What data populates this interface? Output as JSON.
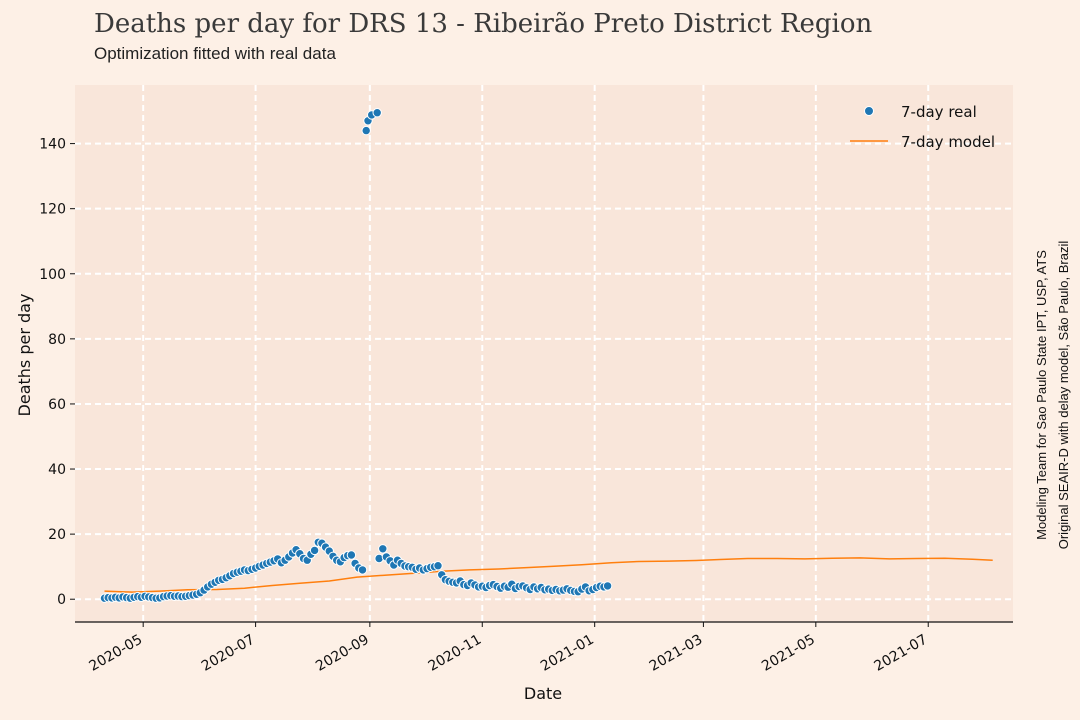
{
  "chart_data": {
    "type": "scatter",
    "title": "Deaths per day for DRS 13 - Ribeirão Preto District Region",
    "subtitle": "Optimization fitted with real data",
    "xlabel": "Date",
    "ylabel": "Deaths per day",
    "side_note": [
      "Modeling Team for Sao Paulo State IPT, USP, ATS",
      "Original SEAIR-D with delay model, São Paulo, Brazil"
    ],
    "x_type": "date",
    "xlim": [
      "2020-03-25",
      "2021-08-16"
    ],
    "ylim": [
      -7,
      158
    ],
    "x_ticks": [
      "2020-05-01",
      "2020-07-01",
      "2020-09-01",
      "2020-11-01",
      "2021-01-01",
      "2021-03-01",
      "2021-05-01",
      "2021-07-01"
    ],
    "x_tick_labels": [
      "2020-05",
      "2020-07",
      "2020-09",
      "2020-11",
      "2021-01",
      "2021-03",
      "2021-05",
      "2021-07"
    ],
    "y_ticks": [
      0,
      20,
      40,
      60,
      80,
      100,
      120,
      140
    ],
    "y_tick_labels": [
      "0",
      "20",
      "40",
      "60",
      "80",
      "100",
      "120",
      "140"
    ],
    "grid": true,
    "legend_position": "top-right",
    "background": "#fdf0e6",
    "plot_background": "#f9e6da",
    "grid_color": "#ffffff",
    "series": [
      {
        "name": "7-day real",
        "kind": "scatter",
        "color": "#1f77b4",
        "points": [
          [
            "2020-04-10",
            0.3
          ],
          [
            "2020-04-12",
            0.5
          ],
          [
            "2020-04-14",
            0.4
          ],
          [
            "2020-04-16",
            0.6
          ],
          [
            "2020-04-18",
            0.4
          ],
          [
            "2020-04-20",
            0.7
          ],
          [
            "2020-04-22",
            0.5
          ],
          [
            "2020-04-24",
            0.3
          ],
          [
            "2020-04-26",
            0.6
          ],
          [
            "2020-04-28",
            0.8
          ],
          [
            "2020-04-30",
            0.6
          ],
          [
            "2020-05-02",
            0.9
          ],
          [
            "2020-05-04",
            0.7
          ],
          [
            "2020-05-06",
            0.5
          ],
          [
            "2020-05-08",
            0.3
          ],
          [
            "2020-05-10",
            0.4
          ],
          [
            "2020-05-12",
            0.8
          ],
          [
            "2020-05-14",
            1.0
          ],
          [
            "2020-05-16",
            1.1
          ],
          [
            "2020-05-18",
            0.9
          ],
          [
            "2020-05-20",
            1.0
          ],
          [
            "2020-05-22",
            0.8
          ],
          [
            "2020-05-24",
            0.9
          ],
          [
            "2020-05-26",
            1.1
          ],
          [
            "2020-05-28",
            1.3
          ],
          [
            "2020-05-30",
            1.5
          ],
          [
            "2020-06-01",
            2.0
          ],
          [
            "2020-06-03",
            2.8
          ],
          [
            "2020-06-05",
            3.8
          ],
          [
            "2020-06-07",
            4.6
          ],
          [
            "2020-06-09",
            5.2
          ],
          [
            "2020-06-11",
            5.8
          ],
          [
            "2020-06-13",
            6.1
          ],
          [
            "2020-06-15",
            6.6
          ],
          [
            "2020-06-17",
            7.2
          ],
          [
            "2020-06-19",
            7.9
          ],
          [
            "2020-06-21",
            8.3
          ],
          [
            "2020-06-23",
            8.6
          ],
          [
            "2020-06-25",
            9.0
          ],
          [
            "2020-06-27",
            8.8
          ],
          [
            "2020-06-29",
            9.2
          ],
          [
            "2020-07-01",
            9.6
          ],
          [
            "2020-07-03",
            10.1
          ],
          [
            "2020-07-05",
            10.5
          ],
          [
            "2020-07-07",
            11.0
          ],
          [
            "2020-07-09",
            11.4
          ],
          [
            "2020-07-11",
            11.8
          ],
          [
            "2020-07-13",
            12.4
          ],
          [
            "2020-07-15",
            11.2
          ],
          [
            "2020-07-17",
            12.0
          ],
          [
            "2020-07-19",
            13.0
          ],
          [
            "2020-07-21",
            14.2
          ],
          [
            "2020-07-23",
            15.2
          ],
          [
            "2020-07-25",
            14.0
          ],
          [
            "2020-07-27",
            12.5
          ],
          [
            "2020-07-29",
            12.0
          ],
          [
            "2020-07-31",
            13.8
          ],
          [
            "2020-08-02",
            15.0
          ],
          [
            "2020-08-04",
            17.5
          ],
          [
            "2020-08-06",
            17.2
          ],
          [
            "2020-08-08",
            16.0
          ],
          [
            "2020-08-10",
            14.8
          ],
          [
            "2020-08-12",
            13.2
          ],
          [
            "2020-08-14",
            12.0
          ],
          [
            "2020-08-16",
            11.5
          ],
          [
            "2020-08-18",
            12.8
          ],
          [
            "2020-08-20",
            13.4
          ],
          [
            "2020-08-22",
            13.6
          ],
          [
            "2020-08-24",
            11.0
          ],
          [
            "2020-08-26",
            9.6
          ],
          [
            "2020-08-28",
            9.0
          ],
          [
            "2020-08-30",
            144.0
          ],
          [
            "2020-08-31",
            147.0
          ],
          [
            "2020-09-02",
            148.8
          ],
          [
            "2020-09-05",
            149.5
          ],
          [
            "2020-09-06",
            12.5
          ],
          [
            "2020-09-08",
            15.5
          ],
          [
            "2020-09-10",
            13.0
          ],
          [
            "2020-09-12",
            11.8
          ],
          [
            "2020-09-14",
            10.5
          ],
          [
            "2020-09-16",
            12.0
          ],
          [
            "2020-09-18",
            11.0
          ],
          [
            "2020-09-20",
            10.2
          ],
          [
            "2020-09-22",
            10.0
          ],
          [
            "2020-09-24",
            9.8
          ],
          [
            "2020-09-26",
            9.2
          ],
          [
            "2020-09-28",
            9.6
          ],
          [
            "2020-09-30",
            9.0
          ],
          [
            "2020-10-02",
            9.4
          ],
          [
            "2020-10-04",
            9.8
          ],
          [
            "2020-10-06",
            10.0
          ],
          [
            "2020-10-08",
            10.3
          ],
          [
            "2020-10-10",
            7.5
          ],
          [
            "2020-10-12",
            6.0
          ],
          [
            "2020-10-14",
            5.5
          ],
          [
            "2020-10-16",
            5.2
          ],
          [
            "2020-10-18",
            5.0
          ],
          [
            "2020-10-20",
            5.6
          ],
          [
            "2020-10-22",
            4.5
          ],
          [
            "2020-10-24",
            4.2
          ],
          [
            "2020-10-26",
            5.0
          ],
          [
            "2020-10-28",
            4.4
          ],
          [
            "2020-10-30",
            3.8
          ],
          [
            "2020-11-01",
            4.0
          ],
          [
            "2020-11-03",
            3.6
          ],
          [
            "2020-11-05",
            4.2
          ],
          [
            "2020-11-07",
            4.5
          ],
          [
            "2020-11-09",
            3.9
          ],
          [
            "2020-11-11",
            3.4
          ],
          [
            "2020-11-13",
            4.0
          ],
          [
            "2020-11-15",
            3.7
          ],
          [
            "2020-11-17",
            4.6
          ],
          [
            "2020-11-19",
            3.3
          ],
          [
            "2020-11-21",
            3.9
          ],
          [
            "2020-11-23",
            4.1
          ],
          [
            "2020-11-25",
            3.5
          ],
          [
            "2020-11-27",
            3.0
          ],
          [
            "2020-11-29",
            3.8
          ],
          [
            "2020-12-01",
            3.2
          ],
          [
            "2020-12-03",
            3.6
          ],
          [
            "2020-12-05",
            2.9
          ],
          [
            "2020-12-07",
            3.1
          ],
          [
            "2020-12-09",
            2.7
          ],
          [
            "2020-12-11",
            3.0
          ],
          [
            "2020-12-13",
            2.6
          ],
          [
            "2020-12-15",
            2.8
          ],
          [
            "2020-12-17",
            3.2
          ],
          [
            "2020-12-19",
            2.7
          ],
          [
            "2020-12-21",
            2.4
          ],
          [
            "2020-12-23",
            2.3
          ],
          [
            "2020-12-25",
            3.1
          ],
          [
            "2020-12-27",
            3.8
          ],
          [
            "2020-12-29",
            2.6
          ],
          [
            "2020-12-31",
            3.0
          ],
          [
            "2021-01-02",
            3.6
          ],
          [
            "2021-01-04",
            4.0
          ],
          [
            "2021-01-06",
            3.8
          ],
          [
            "2021-01-08",
            4.1
          ]
        ]
      },
      {
        "name": "7-day model",
        "kind": "line",
        "color": "#ff7f0e",
        "points": [
          [
            "2020-04-10",
            2.5
          ],
          [
            "2020-04-25",
            2.2
          ],
          [
            "2020-05-10",
            2.5
          ],
          [
            "2020-05-25",
            2.9
          ],
          [
            "2020-06-10",
            3.0
          ],
          [
            "2020-06-25",
            3.4
          ],
          [
            "2020-07-10",
            4.2
          ],
          [
            "2020-07-25",
            4.9
          ],
          [
            "2020-08-10",
            5.6
          ],
          [
            "2020-08-25",
            6.8
          ],
          [
            "2020-09-10",
            7.4
          ],
          [
            "2020-09-25",
            8.0
          ],
          [
            "2020-10-10",
            8.6
          ],
          [
            "2020-10-25",
            9.0
          ],
          [
            "2020-11-10",
            9.3
          ],
          [
            "2020-11-25",
            9.7
          ],
          [
            "2020-12-10",
            10.1
          ],
          [
            "2020-12-25",
            10.6
          ],
          [
            "2021-01-10",
            11.2
          ],
          [
            "2021-01-25",
            11.6
          ],
          [
            "2021-02-10",
            11.7
          ],
          [
            "2021-02-25",
            11.9
          ],
          [
            "2021-03-10",
            12.2
          ],
          [
            "2021-03-25",
            12.5
          ],
          [
            "2021-04-10",
            12.5
          ],
          [
            "2021-04-25",
            12.4
          ],
          [
            "2021-05-10",
            12.6
          ],
          [
            "2021-05-25",
            12.7
          ],
          [
            "2021-06-10",
            12.4
          ],
          [
            "2021-06-25",
            12.5
          ],
          [
            "2021-07-10",
            12.6
          ],
          [
            "2021-07-25",
            12.3
          ],
          [
            "2021-08-05",
            12.0
          ]
        ]
      }
    ]
  }
}
